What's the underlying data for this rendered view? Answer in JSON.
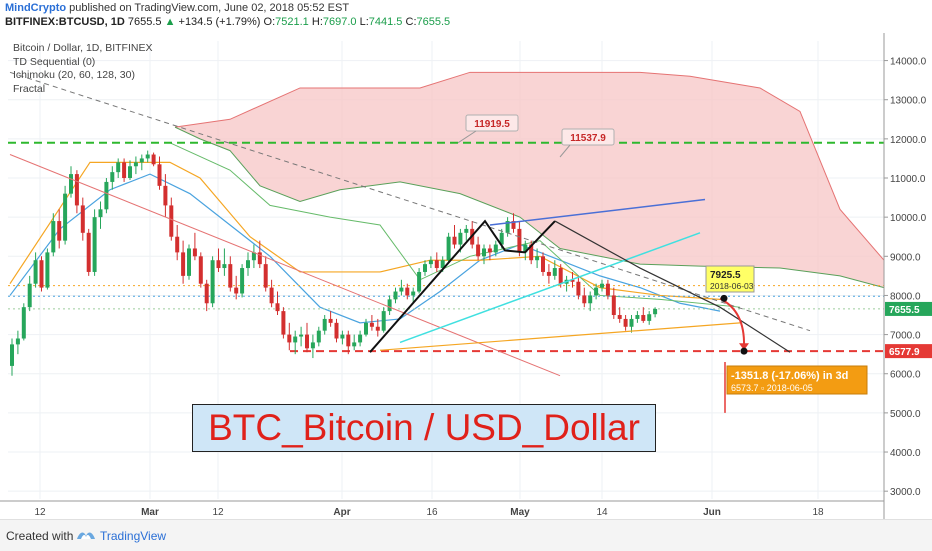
{
  "header": {
    "author": "MindCrypto",
    "published": "published on TradingView.com, June 02, 2018 05:52 EST",
    "symbol": "BITFINEX:BTCUSD, 1D",
    "last": "7655.5",
    "change_arrow": "▲",
    "change": "+134.5 (+1.79%)",
    "o_label": "O:",
    "o_val": "7521.1",
    "h_label": "H:",
    "h_val": "7697.0",
    "l_label": "L:",
    "l_val": "7441.5",
    "c_label": "C:",
    "c_val": "7655.5"
  },
  "legend": {
    "line1": "Bitcoin / Dollar, 1D, BITFINEX",
    "line2": "TD Sequential (0)",
    "line3": "Ichimoku (20, 60, 128, 30)",
    "line4": "Fractal"
  },
  "overlay_title": "BTC_Bitcoin / USD_Dollar",
  "footer": {
    "created_with": "Created with",
    "brand": "TradingView"
  },
  "colors": {
    "up": "#26a65b",
    "down": "#d32f2f",
    "cloud": "#f7c6c6",
    "accent_red": "#e53935",
    "blue": "#2a6fd6"
  },
  "chart_data": {
    "type": "candlestick",
    "ylim": [
      2800,
      14500
    ],
    "y_ticks": [
      "14000.0",
      "13000.0",
      "12000.0",
      "11000.0",
      "10000.0",
      "9000.0",
      "8000.0",
      "7000.0",
      "6000.0",
      "5000.0",
      "4000.0",
      "3000.0"
    ],
    "x_ticks": [
      "12",
      "Mar",
      "12",
      "Apr",
      "16",
      "May",
      "14",
      "Jun",
      "18"
    ],
    "price_labels": [
      {
        "text": "7655.5",
        "value": 7655.5
      },
      {
        "text": "6577.9",
        "value": 6577.9
      }
    ],
    "annotations": [
      {
        "text": "11919.5",
        "value": 11919.5
      },
      {
        "text": "11537.9",
        "value": 11537.9
      },
      {
        "text": "7925.5",
        "sub": "2018-06-03",
        "value": 7925.5
      },
      {
        "text": "-1351.8 (-17.06%) in 3d",
        "sub": "6573.7  ▫  2018-06-05",
        "value": 6573.7
      }
    ],
    "candles": [
      [
        6200,
        6900,
        5950,
        6750
      ],
      [
        6750,
        7100,
        6500,
        6900
      ],
      [
        6900,
        7800,
        6850,
        7700
      ],
      [
        7700,
        8500,
        7600,
        8300
      ],
      [
        8300,
        9100,
        8200,
        8900
      ],
      [
        8900,
        9000,
        8100,
        8200
      ],
      [
        8200,
        9200,
        8150,
        9100
      ],
      [
        9100,
        10100,
        9000,
        9900
      ],
      [
        9900,
        10200,
        9200,
        9400
      ],
      [
        9400,
        10800,
        9300,
        10600
      ],
      [
        10600,
        11300,
        10500,
        11100
      ],
      [
        11100,
        11200,
        10100,
        10300
      ],
      [
        10300,
        10500,
        9400,
        9600
      ],
      [
        9600,
        9700,
        8500,
        8600
      ],
      [
        8600,
        10200,
        8500,
        10000
      ],
      [
        10000,
        10400,
        9700,
        10200
      ],
      [
        10200,
        11000,
        10100,
        10900
      ],
      [
        10900,
        11300,
        10700,
        11150
      ],
      [
        11150,
        11500,
        11000,
        11400
      ],
      [
        11400,
        11500,
        10900,
        11000
      ],
      [
        11000,
        11450,
        10950,
        11300
      ],
      [
        11300,
        11550,
        11100,
        11400
      ],
      [
        11400,
        11600,
        11200,
        11500
      ],
      [
        11500,
        11700,
        11400,
        11600
      ],
      [
        11600,
        11650,
        11300,
        11350
      ],
      [
        11350,
        11550,
        10700,
        10800
      ],
      [
        10800,
        11100,
        10000,
        10300
      ],
      [
        10300,
        10500,
        9400,
        9500
      ],
      [
        9500,
        9800,
        8900,
        9100
      ],
      [
        9100,
        9400,
        8300,
        8500
      ],
      [
        8500,
        9300,
        8400,
        9200
      ],
      [
        9200,
        9600,
        8900,
        9000
      ],
      [
        9000,
        9100,
        8200,
        8300
      ],
      [
        8300,
        8400,
        7600,
        7800
      ],
      [
        7800,
        9000,
        7700,
        8900
      ],
      [
        8900,
        9200,
        8600,
        8700
      ],
      [
        8700,
        9200,
        8500,
        8800
      ],
      [
        8800,
        9000,
        8100,
        8200
      ],
      [
        8200,
        8500,
        7900,
        8050
      ],
      [
        8050,
        8800,
        7950,
        8700
      ],
      [
        8700,
        9100,
        8500,
        8900
      ],
      [
        8900,
        9300,
        8700,
        9100
      ],
      [
        9100,
        9400,
        8700,
        8800
      ],
      [
        8800,
        9000,
        8100,
        8200
      ],
      [
        8200,
        8400,
        7700,
        7800
      ],
      [
        7800,
        8100,
        7500,
        7600
      ],
      [
        7600,
        7700,
        6900,
        7000
      ],
      [
        7000,
        7300,
        6600,
        6800
      ],
      [
        6800,
        7100,
        6500,
        6950
      ],
      [
        6950,
        7200,
        6700,
        7000
      ],
      [
        7000,
        7300,
        6550,
        6650
      ],
      [
        6650,
        7000,
        6400,
        6800
      ],
      [
        6800,
        7200,
        6700,
        7100
      ],
      [
        7100,
        7500,
        7000,
        7400
      ],
      [
        7400,
        7600,
        7200,
        7300
      ],
      [
        7300,
        7400,
        6800,
        6900
      ],
      [
        6900,
        7100,
        6750,
        7000
      ],
      [
        7000,
        7100,
        6500,
        6700
      ],
      [
        6700,
        7000,
        6600,
        6800
      ],
      [
        6800,
        7100,
        6700,
        7000
      ],
      [
        7000,
        7400,
        6950,
        7300
      ],
      [
        7300,
        7500,
        7100,
        7200
      ],
      [
        7200,
        7400,
        6950,
        7100
      ],
      [
        7100,
        7700,
        7050,
        7600
      ],
      [
        7600,
        8000,
        7500,
        7900
      ],
      [
        7900,
        8200,
        7800,
        8100
      ],
      [
        8100,
        8400,
        8000,
        8200
      ],
      [
        8200,
        8300,
        7900,
        8000
      ],
      [
        8000,
        8200,
        7800,
        8100
      ],
      [
        8100,
        8700,
        8050,
        8600
      ],
      [
        8600,
        8900,
        8500,
        8800
      ],
      [
        8800,
        9000,
        8700,
        8900
      ],
      [
        8900,
        9100,
        8600,
        8700
      ],
      [
        8700,
        9000,
        8600,
        8900
      ],
      [
        8900,
        9600,
        8850,
        9500
      ],
      [
        9500,
        9800,
        9200,
        9300
      ],
      [
        9300,
        9700,
        9100,
        9600
      ],
      [
        9600,
        9800,
        9400,
        9700
      ],
      [
        9700,
        9900,
        9200,
        9300
      ],
      [
        9300,
        9500,
        8900,
        9000
      ],
      [
        9000,
        9300,
        8800,
        9200
      ],
      [
        9200,
        9300,
        8900,
        9100
      ],
      [
        9100,
        9400,
        9000,
        9300
      ],
      [
        9300,
        9700,
        9200,
        9600
      ],
      [
        9600,
        10000,
        9500,
        9900
      ],
      [
        9900,
        10100,
        9600,
        9700
      ],
      [
        9700,
        9900,
        9000,
        9100
      ],
      [
        9100,
        9400,
        8900,
        9300
      ],
      [
        9300,
        9400,
        8800,
        8900
      ],
      [
        8900,
        9200,
        8700,
        9000
      ],
      [
        9000,
        9100,
        8500,
        8600
      ],
      [
        8600,
        8800,
        8300,
        8500
      ],
      [
        8500,
        8900,
        8400,
        8700
      ],
      [
        8700,
        8800,
        8200,
        8300
      ],
      [
        8300,
        8500,
        8100,
        8400
      ],
      [
        8400,
        8600,
        8200,
        8350
      ],
      [
        8350,
        8500,
        7900,
        8000
      ],
      [
        8000,
        8200,
        7700,
        7800
      ],
      [
        7800,
        8100,
        7600,
        8000
      ],
      [
        8000,
        8300,
        7900,
        8200
      ],
      [
        8200,
        8400,
        8100,
        8300
      ],
      [
        8300,
        8400,
        7900,
        8000
      ],
      [
        8000,
        8200,
        7400,
        7500
      ],
      [
        7500,
        7700,
        7300,
        7400
      ],
      [
        7400,
        7500,
        7100,
        7200
      ],
      [
        7200,
        7500,
        7050,
        7400
      ],
      [
        7400,
        7600,
        7300,
        7500
      ],
      [
        7500,
        7700,
        7300,
        7350
      ],
      [
        7350,
        7600,
        7250,
        7520
      ],
      [
        7521,
        7697,
        7441,
        7655
      ]
    ]
  }
}
